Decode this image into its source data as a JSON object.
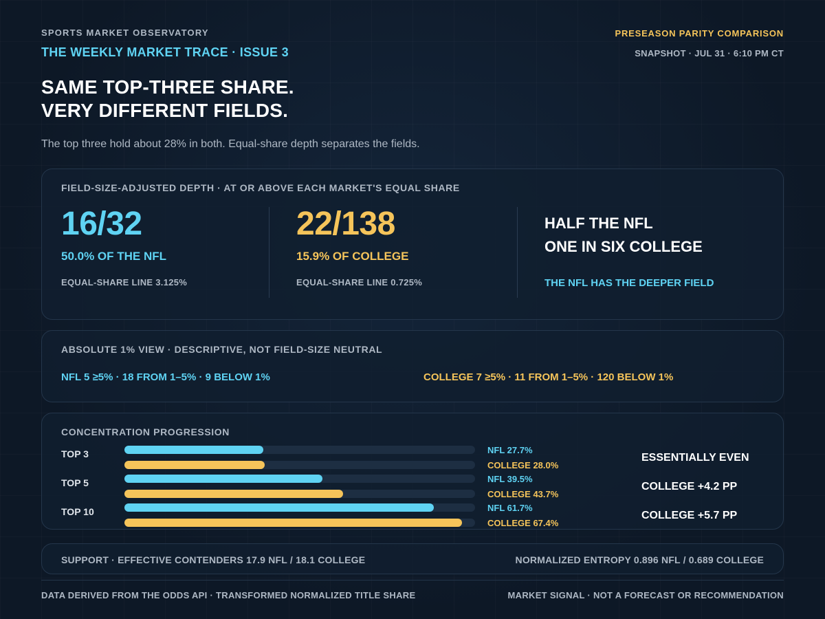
{
  "header": {
    "org": "SPORTS MARKET OBSERVATORY",
    "issue": "THE WEEKLY MARKET TRACE · ISSUE 3",
    "kicker": "PRESEASON PARITY COMPARISON",
    "snapshot": "SNAPSHOT · JUL 31 · 6:10 PM CT",
    "headline_1": "SAME TOP-THREE SHARE.",
    "headline_2": "VERY DIFFERENT FIELDS.",
    "subtitle": "The top three hold about 28% in both. Equal-share depth separates the fields."
  },
  "depth": {
    "label": "FIELD-SIZE-ADJUSTED DEPTH · AT OR ABOVE EACH MARKET'S EQUAL SHARE",
    "nfl_count": "16/32",
    "nfl_pct": "50.0% OF THE NFL",
    "nfl_line": "EQUAL-SHARE LINE 3.125%",
    "college_count": "22/138",
    "college_pct": "15.9% OF COLLEGE",
    "college_line": "EQUAL-SHARE LINE 0.725%",
    "verdict_1": "HALF THE NFL",
    "verdict_2": "ONE IN SIX COLLEGE",
    "verdict_sub": "THE NFL HAS THE DEEPER FIELD"
  },
  "absolute": {
    "label": "ABSOLUTE 1% VIEW · DESCRIPTIVE, NOT FIELD-SIZE NEUTRAL",
    "nfl": "NFL 5 ≥5% · 18 FROM 1–5% · 9 BELOW 1%",
    "college": "COLLEGE 7 ≥5% · 11 FROM 1–5% · 120 BELOW 1%"
  },
  "progression": {
    "label": "CONCENTRATION PROGRESSION",
    "rows": [
      {
        "label": "TOP 3",
        "nfl_text": "NFL 27.7%",
        "college_text": "COLLEGE 28.0%",
        "verdict": "ESSENTIALLY EVEN"
      },
      {
        "label": "TOP 5",
        "nfl_text": "NFL 39.5%",
        "college_text": "COLLEGE 43.7%",
        "verdict": "COLLEGE +4.2 PP"
      },
      {
        "label": "TOP 10",
        "nfl_text": "NFL 61.7%",
        "college_text": "COLLEGE 67.4%",
        "verdict": "COLLEGE +5.7 PP"
      }
    ]
  },
  "chart_data": {
    "type": "bar",
    "categories": [
      "TOP 3",
      "TOP 5",
      "TOP 10"
    ],
    "series": [
      {
        "name": "NFL",
        "values": [
          27.7,
          39.5,
          61.7
        ],
        "color": "#5fd3f3"
      },
      {
        "name": "COLLEGE",
        "values": [
          28.0,
          43.7,
          67.4
        ],
        "color": "#f5c45a"
      }
    ],
    "title": "CONCENTRATION PROGRESSION",
    "xlim": [
      0,
      70
    ],
    "orientation": "horizontal"
  },
  "support": {
    "left": "SUPPORT · EFFECTIVE CONTENDERS 17.9 NFL / 18.1 COLLEGE",
    "right": "NORMALIZED ENTROPY 0.896 NFL / 0.689 COLLEGE"
  },
  "footer": {
    "left": "DATA DERIVED FROM THE ODDS API · TRANSFORMED NORMALIZED TITLE SHARE",
    "right": "MARKET SIGNAL · NOT A FORECAST OR RECOMMENDATION"
  },
  "colors": {
    "nfl": "#5fd3f3",
    "college": "#f5c45a",
    "background": "#0f1b2a"
  }
}
